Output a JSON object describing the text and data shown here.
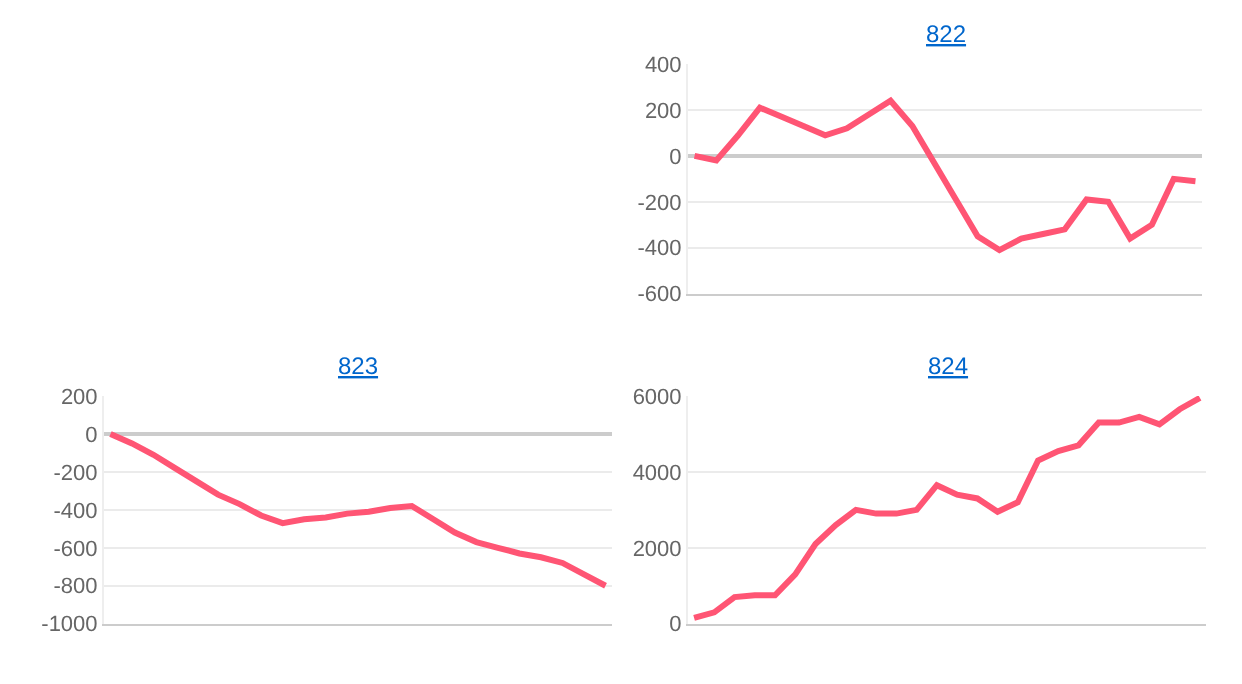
{
  "chart_data": [
    {
      "type": "line",
      "title": "822",
      "categories": [
        null,
        null,
        null,
        null,
        null,
        null,
        null,
        null,
        null,
        null,
        null,
        null,
        null,
        null,
        null,
        null,
        null,
        null,
        null,
        null,
        null,
        null,
        null,
        null
      ],
      "series": [
        {
          "color": "#ff5574",
          "values": [
            0,
            -20,
            90,
            210,
            170,
            130,
            90,
            120,
            180,
            240,
            130,
            -30,
            -190,
            -350,
            -410,
            -360,
            -340,
            -320,
            -190,
            -200,
            -360,
            -300,
            -100,
            -110
          ]
        }
      ],
      "ylim": [
        -600,
        400
      ],
      "yticks": [
        -600,
        -400,
        -200,
        0,
        200,
        400
      ],
      "grid": "y",
      "tick_labels": "y"
    },
    {
      "type": "line",
      "title": "823",
      "categories": [
        null,
        null,
        null,
        null,
        null,
        null,
        null,
        null,
        null,
        null,
        null,
        null,
        null,
        null,
        null,
        null,
        null,
        null,
        null,
        null,
        null,
        null,
        null,
        null
      ],
      "series": [
        {
          "color": "#ff5574",
          "values": [
            0,
            -50,
            -110,
            -180,
            -250,
            -320,
            -370,
            -430,
            -470,
            -450,
            -440,
            -420,
            -410,
            -390,
            -380,
            -450,
            -520,
            -570,
            -600,
            -630,
            -650,
            -680,
            -740,
            -800
          ]
        }
      ],
      "ylim": [
        -1000,
        200
      ],
      "yticks": [
        -1000,
        -800,
        -600,
        -400,
        -200,
        0,
        200
      ],
      "grid": "y",
      "tick_labels": "y"
    },
    {
      "type": "line",
      "title": "824",
      "categories": [
        null,
        null,
        null,
        null,
        null,
        null,
        null,
        null,
        null,
        null,
        null,
        null,
        null,
        null,
        null,
        null,
        null,
        null,
        null,
        null,
        null,
        null,
        null,
        null,
        null,
        null
      ],
      "series": [
        {
          "color": "#ff5574",
          "values": [
            150,
            300,
            700,
            750,
            750,
            1300,
            2100,
            2600,
            3000,
            2900,
            2900,
            3000,
            3650,
            3400,
            3300,
            2950,
            3200,
            4300,
            4550,
            4700,
            5300,
            5300,
            5450,
            5250,
            5650,
            5950
          ]
        }
      ],
      "ylim": [
        0,
        6000
      ],
      "yticks": [
        0,
        2000,
        4000,
        6000
      ],
      "grid": "y",
      "tick_labels": "y"
    }
  ]
}
